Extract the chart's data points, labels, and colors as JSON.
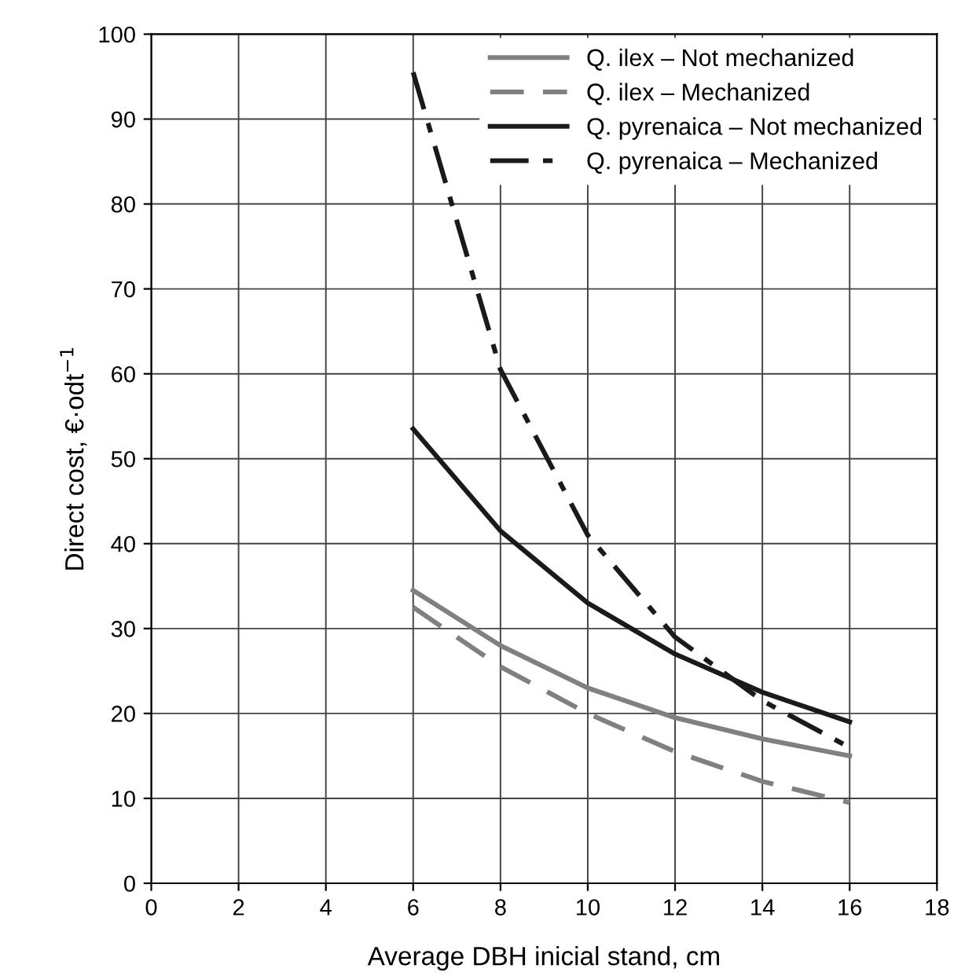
{
  "chart_data": {
    "type": "line",
    "xlabel": "Average DBH inicial stand, cm",
    "ylabel": "Direct cost, €·odt$^{−1}$",
    "xlim": [
      0,
      18
    ],
    "xticks": [
      0,
      2,
      4,
      6,
      8,
      10,
      12,
      14,
      16,
      18
    ],
    "ylim": [
      0,
      100
    ],
    "yticks": [
      0,
      10,
      20,
      30,
      40,
      50,
      60,
      70,
      80,
      90,
      100
    ],
    "grid": true,
    "legend": "top right",
    "marker": "none",
    "x": [
      6,
      8,
      10,
      12,
      14,
      16
    ],
    "series": [
      {
        "name": "Q. ilex – Not mechanized",
        "color": "#808080",
        "line_style": "solid",
        "values": [
          34.5,
          28,
          23,
          19.5,
          17,
          15
        ]
      },
      {
        "name": "Q. ilex – Mechanized",
        "color": "#808080",
        "line_style": "dashed",
        "values": [
          32.5,
          25.5,
          20,
          15.5,
          12,
          9.5
        ]
      },
      {
        "name": "Q. pyrenaica – Not mechanized",
        "color": "#1a1a1a",
        "line_style": "solid",
        "values": [
          53.5,
          41.5,
          33,
          27,
          22.5,
          19
        ]
      },
      {
        "name": "Q. pyrenaica – Mechanized",
        "color": "#1a1a1a",
        "line_style": "dashdot",
        "values": [
          95.5,
          60.5,
          41,
          29,
          21.5,
          16
        ]
      }
    ]
  }
}
